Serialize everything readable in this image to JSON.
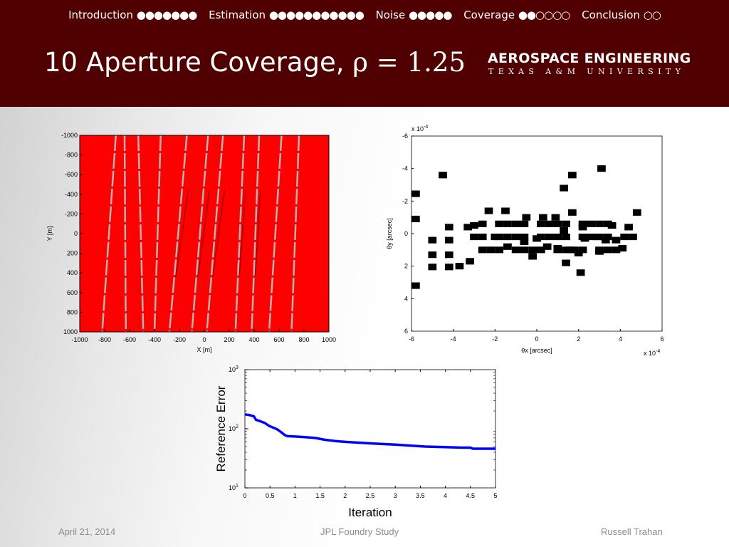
{
  "nav": [
    {
      "label": "Introduction",
      "dots": "●●●●●●●"
    },
    {
      "label": "Estimation",
      "dots": "●●●●●●●●●●●"
    },
    {
      "label": "Noise",
      "dots": "●●●●●"
    },
    {
      "label": "Coverage",
      "dots": "●●○○○○"
    },
    {
      "label": "Conclusion",
      "dots": "○○"
    }
  ],
  "slide": {
    "title_text": "10 Aperture Coverage, ",
    "title_math": "ρ = 1.25"
  },
  "logo": {
    "main": "AEROSPACE ENGINEERING",
    "sub": "TEXAS A&M UNIVERSITY"
  },
  "colors": {
    "header": "#500000",
    "coverage_background": "#ff0000",
    "coverage_stripe": "#b4b4b4",
    "error_line": "#0000ff"
  },
  "chart_data": [
    {
      "type": "heatmap",
      "title": "",
      "xlabel": "X [m]",
      "ylabel": "Y [m]",
      "xlim": [
        -1000,
        1000
      ],
      "ylim": [
        -1000,
        1000
      ],
      "y_direction": "down",
      "x_ticks": [
        -1000,
        -800,
        -600,
        -400,
        -200,
        0,
        200,
        400,
        600,
        800,
        1000
      ],
      "y_ticks": [
        -1000,
        -800,
        -600,
        -400,
        -200,
        0,
        200,
        400,
        600,
        800,
        1000
      ],
      "stripes": [
        {
          "x_top": -710,
          "x_bottom": -820
        },
        {
          "x_top": -640,
          "x_bottom": -630
        },
        {
          "x_top": -530,
          "x_bottom": -490
        },
        {
          "x_top": -350,
          "x_bottom": -400
        },
        {
          "x_top": -140,
          "x_bottom": -280
        },
        {
          "x_top": 30,
          "x_bottom": -100
        },
        {
          "x_top": 150,
          "x_bottom": 20
        },
        {
          "x_top": 320,
          "x_bottom": 250
        },
        {
          "x_top": 440,
          "x_bottom": 380
        },
        {
          "x_top": 620,
          "x_bottom": 520
        },
        {
          "x_top": 760,
          "x_bottom": 700
        }
      ]
    },
    {
      "type": "scatter",
      "title": "",
      "xlabel": "θx [arcsec]",
      "ylabel": "θy [arcsec]",
      "x_multiplier": "x 10-4",
      "y_multiplier": "x 10-4",
      "xlim": [
        -6,
        6
      ],
      "ylim": [
        -6,
        6
      ],
      "y_direction": "down",
      "x_ticks": [
        -6,
        -4,
        -2,
        0,
        2,
        4,
        6
      ],
      "y_ticks": [
        -6,
        -4,
        -2,
        0,
        2,
        4,
        6
      ],
      "cell_size": 0.4,
      "cells": [
        [
          -5.8,
          -2.45
        ],
        [
          -5.8,
          -0.9
        ],
        [
          -5.8,
          3.2
        ],
        [
          -4.5,
          -3.6
        ],
        [
          -3.7,
          2.0
        ],
        [
          -3.2,
          1.7
        ],
        [
          1.3,
          -2.8
        ],
        [
          1.7,
          -3.6
        ],
        [
          3.1,
          -4.0
        ],
        [
          4.8,
          -1.3
        ],
        [
          1.7,
          -1.3
        ],
        [
          4.4,
          -0.4
        ],
        [
          2.1,
          2.4
        ],
        [
          4.1,
          0.9
        ],
        [
          -5.0,
          2.05
        ],
        [
          -4.2,
          2.05
        ],
        [
          -5.0,
          1.3
        ],
        [
          -4.2,
          1.3
        ],
        [
          -5.0,
          0.4
        ],
        [
          -4.2,
          0.4
        ],
        [
          -4.2,
          -0.4
        ],
        [
          -3.3,
          -0.4
        ],
        [
          -2.3,
          -1.4
        ],
        [
          -1.5,
          -1.4
        ],
        [
          -0.5,
          -1.0
        ],
        [
          0.3,
          -1.0
        ],
        [
          0.9,
          -1.0
        ],
        [
          -3.0,
          -0.5
        ],
        [
          -2.0,
          0.2
        ],
        [
          -1.4,
          0.8
        ],
        [
          -0.6,
          0.5
        ],
        [
          0.0,
          0.3
        ],
        [
          0.5,
          0.8
        ],
        [
          1.0,
          0.9
        ],
        [
          1.6,
          1.0
        ],
        [
          2.0,
          1.2
        ],
        [
          2.3,
          0.3
        ],
        [
          2.9,
          0.2
        ],
        [
          3.3,
          0.4
        ],
        [
          3.8,
          0.4
        ],
        [
          3.6,
          -0.5
        ],
        [
          2.2,
          -0.4
        ],
        [
          1.3,
          -0.2
        ],
        [
          -0.2,
          1.4
        ],
        [
          1.4,
          1.8
        ],
        [
          3.0,
          1.1
        ]
      ]
    },
    {
      "type": "line",
      "title": "",
      "xlabel": "Iteration",
      "ylabel": "Reference Error",
      "xlim": [
        0,
        5
      ],
      "ylim": [
        10,
        1000
      ],
      "y_scale": "log",
      "x_ticks": [
        "0",
        "0.5",
        "1",
        "1.5",
        "2",
        "2.5",
        "3",
        "3.5",
        "4",
        "4.5",
        "5"
      ],
      "y_ticks": [
        10,
        100,
        1000
      ],
      "y_tick_labels": [
        [
          "10",
          "1"
        ],
        [
          "10",
          "2"
        ],
        [
          "10",
          "3"
        ]
      ],
      "series": [
        {
          "x": [
            0,
            0.1,
            0.18,
            0.22,
            0.3,
            0.4,
            0.48,
            0.56,
            0.64,
            0.72,
            0.8,
            0.85,
            1.0,
            1.2,
            1.4,
            1.6,
            1.8,
            2.0,
            2.3,
            2.6,
            3.0,
            3.3,
            3.6,
            4.0,
            4.3,
            4.5,
            4.55,
            4.8,
            5.0
          ],
          "y": [
            175,
            170,
            162,
            142,
            135,
            125,
            112,
            105,
            98,
            88,
            78,
            75,
            74,
            72,
            70,
            65,
            62,
            60,
            58,
            56,
            54,
            52,
            50,
            49,
            48,
            48,
            46,
            46,
            46
          ]
        }
      ]
    }
  ],
  "footer": {
    "date": "April 21, 2014",
    "title": "JPL Foundry Study",
    "author": "Russell Trahan"
  }
}
